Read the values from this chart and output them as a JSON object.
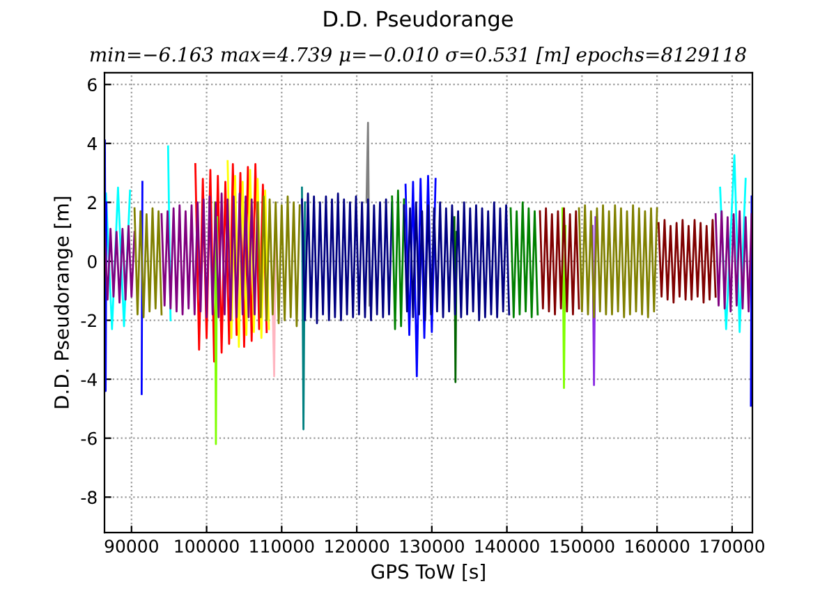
{
  "chart_data": {
    "type": "line",
    "title": "D.D. Pseudorange",
    "subtitle": "min=−6.163 max=4.739 μ=−0.010 σ=0.531 [m] epochs=8129118",
    "xlabel": "GPS ToW [s]",
    "ylabel": "D.D. Pseudorange [m]",
    "xlim": [
      86400,
      172700
    ],
    "ylim": [
      -9.2,
      6.4
    ],
    "xticks": [
      90000,
      100000,
      110000,
      120000,
      130000,
      140000,
      150000,
      160000,
      170000
    ],
    "yticks": [
      -8,
      -6,
      -4,
      -2,
      0,
      2,
      4,
      6
    ],
    "grid": true,
    "line_style": "solid",
    "series": [
      {
        "color": "#00ffff",
        "x": [
          86600,
          87400,
          88200,
          89000,
          89800,
          92000,
          94870,
          95200,
          130000,
          168400,
          169200,
          170300,
          171000,
          171800
        ],
        "values": [
          2.3,
          -2.3,
          2.5,
          -2.2,
          2.4,
          null,
          3.9,
          -2.0,
          null,
          2.5,
          -2.3,
          3.6,
          -2.4,
          2.8
        ]
      },
      {
        "color": "#0000ff",
        "x": [
          86450,
          86550,
          86650,
          91000,
          91350,
          91450,
          126000,
          126500,
          127000,
          127500,
          128000,
          128500,
          129000,
          129500,
          130000,
          130500,
          131000,
          172500,
          172600
        ],
        "values": [
          4.1,
          -4.4,
          2.0,
          null,
          -4.5,
          2.7,
          null,
          2.6,
          -2.5,
          2.7,
          -3.9,
          2.8,
          -2.6,
          2.9,
          -2.4,
          2.8,
          null,
          -4.9,
          2.2
        ]
      },
      {
        "color": "#ff0000",
        "x": [
          98500,
          99000,
          99500,
          100000,
          100500,
          101000,
          101500,
          102000,
          102500,
          103000,
          103500,
          104000,
          104500,
          105000,
          105500,
          106000,
          106500,
          107000,
          107500,
          108000
        ],
        "values": [
          3.3,
          -3.0,
          2.8,
          -2.6,
          3.1,
          -3.4,
          2.9,
          -3.1,
          2.7,
          -2.8,
          3.3,
          -2.5,
          3.0,
          -2.9,
          3.2,
          -2.7,
          3.3,
          -2.3,
          2.6,
          -2.4
        ]
      },
      {
        "color": "#ffff00",
        "x": [
          102800,
          103300,
          103800,
          104300,
          104800,
          105300,
          105800,
          106300,
          106800,
          107300,
          107800,
          108300
        ],
        "values": [
          3.4,
          -2.6,
          2.9,
          -2.9,
          2.7,
          -2.5,
          3.1,
          -2.4,
          2.8,
          -2.6,
          2.4,
          -2.3
        ]
      },
      {
        "color": "#808080",
        "x": [
          121300,
          121500,
          121700
        ],
        "values": [
          2.0,
          4.7,
          -1.5
        ]
      },
      {
        "color": "#7fff00",
        "x": [
          101100,
          101240,
          101400,
          124000,
          147400,
          147600,
          147800
        ],
        "values": [
          2.0,
          -6.2,
          1.5,
          null,
          1.8,
          -4.3,
          1.2
        ]
      },
      {
        "color": "#008080",
        "x": [
          112700,
          112900,
          113100
        ],
        "values": [
          2.5,
          -5.7,
          2.0
        ]
      },
      {
        "color": "#ffb6c1",
        "x": [
          108800,
          109000,
          109200
        ],
        "values": [
          -1.5,
          -3.9,
          1.5
        ]
      },
      {
        "color": "#006400",
        "x": [
          133000,
          133150,
          133300
        ],
        "values": [
          1.5,
          -4.1,
          1.0
        ]
      },
      {
        "color": "#8a2be2",
        "x": [
          151400,
          151600,
          151800
        ],
        "values": [
          1.2,
          -4.2,
          1.5
        ]
      },
      {
        "color": "#800080",
        "x": [
          86400,
          86800,
          87200,
          87600,
          88000,
          88400,
          88800,
          89200,
          89600,
          90000,
          90400
        ],
        "values": [
          1.0,
          -1.3,
          1.1,
          -1.2,
          1.0,
          -1.4,
          1.1,
          -1.3,
          1.2,
          -1.2,
          1.0
        ]
      },
      {
        "color": "#808000",
        "x": [
          90400,
          90800,
          91200,
          91600,
          92000,
          92400,
          92800,
          93200,
          93600,
          94000
        ],
        "values": [
          1.8,
          -1.8,
          1.7,
          -1.9,
          1.6,
          -1.7,
          1.8,
          -1.6,
          1.7,
          -1.8
        ]
      },
      {
        "color": "#800080",
        "x": [
          94000,
          94400,
          94800,
          95200,
          95600,
          96000,
          96400,
          96800,
          97200,
          97600,
          98000,
          98400,
          98800,
          99200,
          99600,
          100000,
          100400,
          100800,
          101200,
          101600,
          102000,
          102400,
          102800,
          103200,
          103600,
          104000,
          104400,
          104800,
          105200,
          105600,
          106000,
          106400,
          106800
        ],
        "values": [
          1.6,
          -1.5,
          1.7,
          -1.6,
          1.8,
          -1.7,
          1.9,
          -1.8,
          1.7,
          -1.6,
          1.9,
          -1.8,
          2.0,
          -1.7,
          2.1,
          -1.9,
          2.2,
          -1.8,
          2.0,
          -1.9,
          2.3,
          -1.8,
          2.1,
          -2.0,
          2.2,
          -1.9,
          2.3,
          -1.8,
          2.2,
          -1.9,
          2.1,
          -1.8,
          2.0
        ]
      },
      {
        "color": "#808000",
        "x": [
          106800,
          107200,
          107600,
          108000,
          108400,
          108800,
          109200,
          109600,
          110000,
          110400,
          110800,
          111200,
          111600,
          112000,
          112400
        ],
        "values": [
          2.0,
          -1.9,
          2.2,
          -2.0,
          2.1,
          -1.8,
          2.0,
          -2.1,
          1.9,
          -2.0,
          2.2,
          -1.9,
          2.0,
          -2.2,
          1.9
        ]
      },
      {
        "color": "#000080",
        "x": [
          112700,
          113100,
          113500,
          113900,
          114300,
          114700,
          115100,
          115500,
          115900,
          116300,
          116700,
          117100,
          117500,
          117900,
          118300,
          118700,
          119100,
          119500,
          119900,
          120300,
          120700,
          121100,
          121500,
          121900,
          122300,
          122700,
          123100,
          123500,
          123900,
          124300,
          124700
        ],
        "values": [
          2.1,
          -2.0,
          2.3,
          -1.9,
          2.2,
          -2.1,
          2.0,
          -1.8,
          2.2,
          -2.0,
          2.1,
          -1.9,
          2.3,
          -2.0,
          2.1,
          -1.8,
          2.0,
          -1.9,
          2.2,
          -1.8,
          2.0,
          -1.9,
          2.1,
          -2.0,
          1.9,
          -1.8,
          2.0,
          -1.9,
          2.1,
          -1.8,
          2.0
        ]
      },
      {
        "color": "#008000",
        "x": [
          124700,
          125100,
          125500,
          125900,
          126300
        ],
        "values": [
          2.2,
          -2.3,
          2.4,
          -2.2,
          2.1
        ]
      },
      {
        "color": "#000080",
        "x": [
          126300,
          126700,
          127100,
          127500,
          127900,
          128300,
          128700,
          129100,
          129500,
          129900,
          130300,
          130700,
          131100,
          131500,
          131900,
          132300,
          132700,
          133100,
          133500,
          133900,
          134300,
          134700,
          135100,
          135500,
          135900,
          136300,
          136700,
          137100,
          137500,
          137900,
          138300,
          138700,
          139100,
          139500,
          139900,
          140300
        ],
        "values": [
          1.9,
          -1.7,
          1.8,
          -1.9,
          2.0,
          -1.8,
          1.7,
          -2.0,
          1.9,
          -1.8,
          1.8,
          -1.7,
          2.0,
          -1.9,
          1.8,
          -1.7,
          1.9,
          -1.8,
          1.7,
          -1.9,
          2.0,
          -1.8,
          1.8,
          -1.7,
          1.9,
          -2.0,
          1.8,
          -1.9,
          1.7,
          -1.8,
          2.0,
          -1.9,
          1.8,
          -1.7,
          1.9,
          -1.8
        ]
      },
      {
        "color": "#008000",
        "x": [
          140500,
          140900,
          141300,
          141700,
          142100,
          142500,
          142900,
          143300,
          143700,
          144100
        ],
        "values": [
          1.8,
          -1.9,
          1.7,
          -1.8,
          2.0,
          -1.7,
          1.8,
          -1.9,
          1.7,
          -1.8
        ]
      },
      {
        "color": "#800000",
        "x": [
          144400,
          144800,
          145200,
          145600,
          146000,
          146400,
          146800,
          147200,
          147600,
          148000,
          148400,
          148800,
          149200,
          149600
        ],
        "values": [
          1.7,
          -1.6,
          1.8,
          -1.7,
          1.6,
          -1.8,
          1.7,
          -1.6,
          1.8,
          -1.7,
          1.6,
          -1.8,
          1.7,
          -1.6
        ]
      },
      {
        "color": "#808000",
        "x": [
          149600,
          150000,
          150400,
          150800,
          151200,
          151600,
          152000,
          152400,
          152800,
          153200,
          153600,
          154000,
          154400,
          154800,
          155200,
          155600,
          156000,
          156400,
          156800,
          157200,
          157600,
          158000,
          158400,
          158800,
          159200,
          159600,
          160000
        ],
        "values": [
          1.8,
          -1.7,
          1.9,
          -1.8,
          1.7,
          -1.9,
          1.8,
          -1.7,
          1.9,
          -1.8,
          1.7,
          -1.8,
          1.9,
          -1.7,
          1.8,
          -1.9,
          1.7,
          -1.8,
          1.9,
          -1.7,
          1.8,
          -1.8,
          1.7,
          -1.9,
          1.8,
          -1.7,
          1.8
        ]
      },
      {
        "color": "#800000",
        "x": [
          160200,
          160600,
          161000,
          161400,
          161800,
          162200,
          162600,
          163000,
          163400,
          163800,
          164200,
          164600,
          165000,
          165400,
          165800,
          166200,
          166600,
          167000,
          167400,
          167800
        ],
        "values": [
          1.3,
          -1.2,
          1.4,
          -1.3,
          1.2,
          -1.4,
          1.3,
          -1.2,
          1.4,
          -1.3,
          1.2,
          -1.3,
          1.4,
          -1.2,
          1.3,
          -1.4,
          1.2,
          -1.3,
          1.4,
          -1.2
        ]
      },
      {
        "color": "#800080",
        "x": [
          167800,
          168200,
          168600,
          169000,
          169400,
          169800,
          170200,
          170600,
          171000,
          171400,
          171800,
          172200,
          172600
        ],
        "values": [
          1.6,
          -1.5,
          1.7,
          -1.6,
          1.5,
          -1.7,
          1.6,
          -1.5,
          1.7,
          -1.6,
          1.5,
          -1.7,
          1.6
        ]
      }
    ]
  }
}
